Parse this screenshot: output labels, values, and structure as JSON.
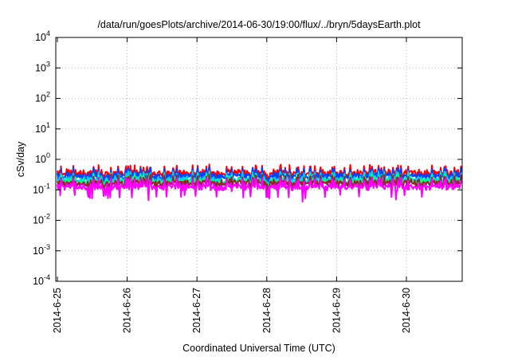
{
  "chart_data": {
    "type": "line",
    "title": "/data/run/goesPlots/archive/2014-06-30/19:00/flux/../bryn/5daysEarth.plot",
    "xlabel": "Coordinated Universal Time (UTC)",
    "ylabel": "cSv/day",
    "yscale": "log",
    "ylim": [
      0.0001,
      10000
    ],
    "y_ticks": [
      {
        "base": "10",
        "exp": "-4",
        "value": 0.0001
      },
      {
        "base": "10",
        "exp": "-3",
        "value": 0.001
      },
      {
        "base": "10",
        "exp": "-2",
        "value": 0.01
      },
      {
        "base": "10",
        "exp": "-1",
        "value": 0.1
      },
      {
        "base": "10",
        "exp": "0",
        "value": 1
      },
      {
        "base": "10",
        "exp": "1",
        "value": 10
      },
      {
        "base": "10",
        "exp": "2",
        "value": 100
      },
      {
        "base": "10",
        "exp": "3",
        "value": 1000
      },
      {
        "base": "10",
        "exp": "4",
        "value": 10000
      }
    ],
    "xlim": [
      "2014-06-25",
      "2014-06-30 19:00"
    ],
    "x_ticks": [
      "2014-6-25",
      "2014-6-26",
      "2014-6-27",
      "2014-6-28",
      "2014-6-29",
      "2014-6-30"
    ],
    "grid": true,
    "series": [
      {
        "color": "#ff0000",
        "base": 0.36,
        "seed": 1
      },
      {
        "color": "#0044ff",
        "base": 0.29,
        "seed": 2
      },
      {
        "color": "#00ccff",
        "base": 0.22,
        "seed": 3
      },
      {
        "color": "#00ff88",
        "base": 0.19,
        "seed": 4
      },
      {
        "color": "#8a2a2a",
        "base": 0.17,
        "seed": 5
      },
      {
        "color": "#ff00ff",
        "base": 0.13,
        "seed": 6
      }
    ]
  }
}
